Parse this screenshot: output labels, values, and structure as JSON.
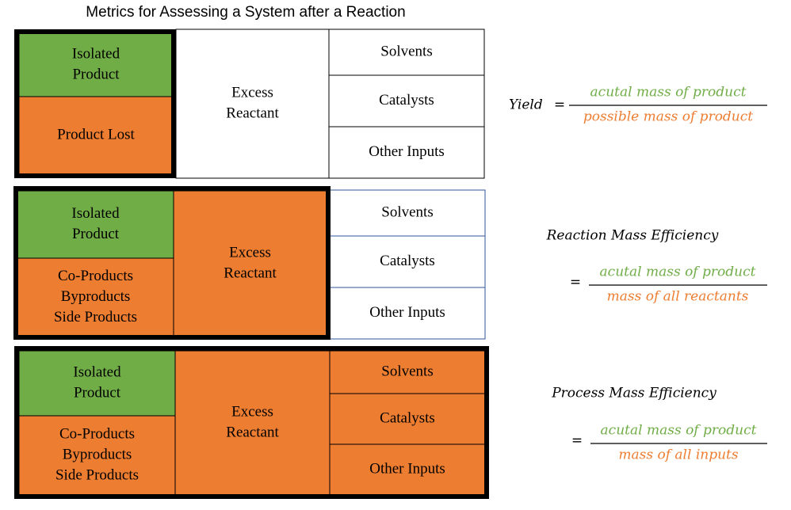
{
  "title": "Metrics for Assessing a System after a Reaction",
  "panels": [
    {
      "cells": [
        {
          "lines": [
            "Isolated",
            "Product"
          ]
        },
        {
          "lines": [
            "Product Lost"
          ]
        },
        {
          "lines": [
            "Excess",
            "Reactant"
          ]
        },
        {
          "lines": [
            "Solvents"
          ]
        },
        {
          "lines": [
            "Catalysts"
          ]
        },
        {
          "lines": [
            "Other Inputs"
          ]
        }
      ]
    },
    {
      "cells": [
        {
          "lines": [
            "Isolated",
            "Product"
          ]
        },
        {
          "lines": [
            "Co-Products",
            "Byproducts",
            "Side Products"
          ]
        },
        {
          "lines": [
            "Excess",
            "Reactant"
          ]
        },
        {
          "lines": [
            "Solvents"
          ]
        },
        {
          "lines": [
            "Catalysts"
          ]
        },
        {
          "lines": [
            "Other Inputs"
          ]
        }
      ]
    },
    {
      "cells": [
        {
          "lines": [
            "Isolated",
            "Product"
          ]
        },
        {
          "lines": [
            "Co-Products",
            "Byproducts",
            "Side Products"
          ]
        },
        {
          "lines": [
            "Excess",
            "Reactant"
          ]
        },
        {
          "lines": [
            "Solvents"
          ]
        },
        {
          "lines": [
            "Catalysts"
          ]
        },
        {
          "lines": [
            "Other Inputs"
          ]
        }
      ]
    }
  ],
  "formulas": [
    {
      "name": "Yield",
      "equals": "=",
      "numerator": "acutal mass of product",
      "denominator": "possible mass of product"
    },
    {
      "name": "Reaction Mass Efficiency",
      "equals": "=",
      "numerator": "acutal mass of product",
      "denominator": "mass of all reactants"
    },
    {
      "name": "Process Mass Efficiency",
      "equals": "=",
      "numerator": "acutal mass of product",
      "denominator": "mass of all inputs"
    }
  ]
}
